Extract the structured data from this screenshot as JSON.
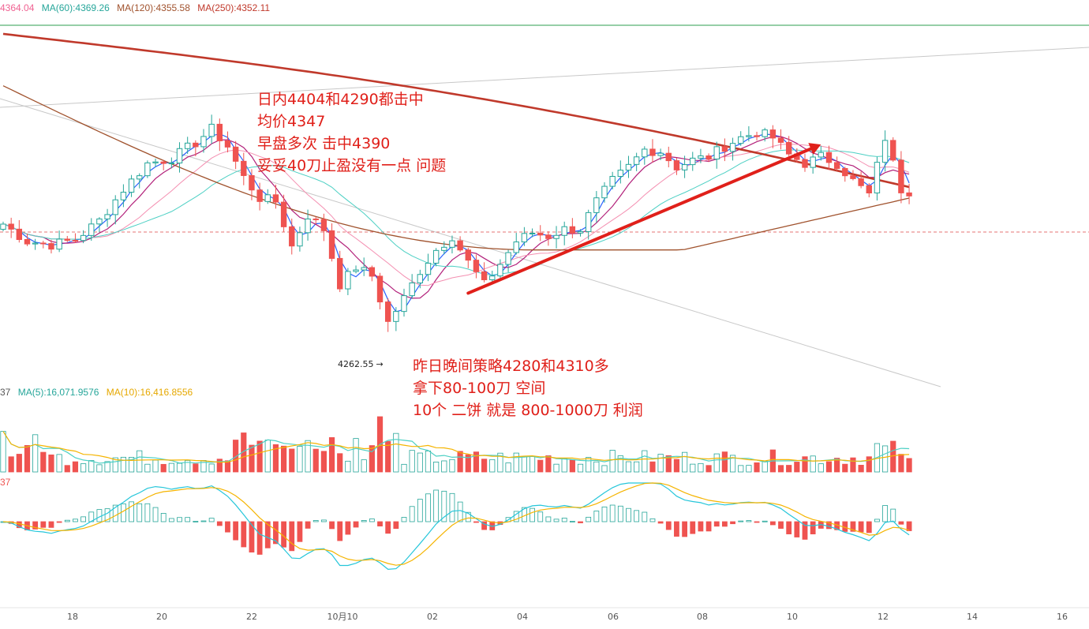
{
  "colors": {
    "up": "#26a69a",
    "down": "#ef5350",
    "ma5": "#2962ff",
    "ma10": "#b2207a",
    "ma30": "#f48fb1",
    "ma60": "#4dd0c4",
    "ma120": "#a0522d",
    "ma250": "#c0392b",
    "vol_ma5": "#4dd0c4",
    "vol_ma10": "#f5b400",
    "annotation": "#e0201a",
    "trendline": "#c8c8c8",
    "hline_top": "#2e9e4f",
    "price_dash": "#e57373"
  },
  "price_header": {
    "ma30": "4364.04",
    "ma60": "MA(60):4369.26",
    "ma120": "MA(120):4355.58",
    "ma250": "MA(250):4352.11"
  },
  "volume_header": {
    "prefix": "37",
    "ma5": "MA(5):16,071.9576",
    "ma10": "MA(10):16,416.8556"
  },
  "macd_header": {
    "prefix": "37"
  },
  "low_label": "4262.55",
  "low_arrow": "→",
  "annotations": {
    "top": [
      "日内4404和4290都击中",
      "均价4347",
      "早盘多次 击中4390",
      "妥妥40刀止盈没有一点 问题"
    ],
    "bottom": [
      "昨日晚间策略4280和4310多",
      "拿下80-100刀 空间",
      "10个 二饼 就是 800-1000刀 利润"
    ]
  },
  "chart_data": {
    "type": "candlestick",
    "x_tick_labels": [
      "18",
      "20",
      "22",
      "10月10",
      "02",
      "04",
      "06",
      "08",
      "10",
      "12",
      "14",
      "16"
    ],
    "price_low_marked": 4262.55,
    "price_keypoints": [
      {
        "t": 0,
        "p": 4325
      },
      {
        "t": 3,
        "p": 4315
      },
      {
        "t": 6,
        "p": 4313
      },
      {
        "t": 9,
        "p": 4316
      },
      {
        "t": 12,
        "p": 4327
      },
      {
        "t": 15,
        "p": 4345
      },
      {
        "t": 18,
        "p": 4360
      },
      {
        "t": 21,
        "p": 4363
      },
      {
        "t": 24,
        "p": 4372
      },
      {
        "t": 26,
        "p": 4380
      },
      {
        "t": 28,
        "p": 4370
      },
      {
        "t": 30,
        "p": 4352
      },
      {
        "t": 32,
        "p": 4340
      },
      {
        "t": 34,
        "p": 4338
      },
      {
        "t": 36,
        "p": 4312
      },
      {
        "t": 38,
        "p": 4330
      },
      {
        "t": 40,
        "p": 4322
      },
      {
        "t": 42,
        "p": 4290
      },
      {
        "t": 44,
        "p": 4300
      },
      {
        "t": 46,
        "p": 4295
      },
      {
        "t": 48,
        "p": 4268
      },
      {
        "t": 50,
        "p": 4282
      },
      {
        "t": 52,
        "p": 4298
      },
      {
        "t": 54,
        "p": 4310
      },
      {
        "t": 56,
        "p": 4318
      },
      {
        "t": 58,
        "p": 4303
      },
      {
        "t": 60,
        "p": 4290
      },
      {
        "t": 62,
        "p": 4302
      },
      {
        "t": 64,
        "p": 4315
      },
      {
        "t": 66,
        "p": 4320
      },
      {
        "t": 68,
        "p": 4318
      },
      {
        "t": 70,
        "p": 4322
      },
      {
        "t": 72,
        "p": 4322
      },
      {
        "t": 74,
        "p": 4338
      },
      {
        "t": 76,
        "p": 4350
      },
      {
        "t": 78,
        "p": 4358
      },
      {
        "t": 80,
        "p": 4368
      },
      {
        "t": 82,
        "p": 4367
      },
      {
        "t": 84,
        "p": 4358
      },
      {
        "t": 86,
        "p": 4362
      },
      {
        "t": 88,
        "p": 4364
      },
      {
        "t": 90,
        "p": 4370
      },
      {
        "t": 92,
        "p": 4375
      },
      {
        "t": 94,
        "p": 4378
      },
      {
        "t": 96,
        "p": 4375
      },
      {
        "t": 98,
        "p": 4365
      },
      {
        "t": 100,
        "p": 4360
      },
      {
        "t": 102,
        "p": 4364
      },
      {
        "t": 104,
        "p": 4360
      },
      {
        "t": 106,
        "p": 4350
      },
      {
        "t": 108,
        "p": 4342
      },
      {
        "t": 110,
        "p": 4375
      },
      {
        "t": 112,
        "p": 4345
      },
      {
        "t": 113,
        "p": 4344
      }
    ],
    "price_ylim": [
      4240,
      4440
    ],
    "reference_price": 4350,
    "trendline_arrow": {
      "from": {
        "t": 58,
        "p": 4285
      },
      "to": {
        "t": 102,
        "p": 4371
      }
    },
    "volume_series": [
      "Volume",
      "MA(5)",
      "MA(10)"
    ],
    "macd_series": [
      "MACD histogram",
      "DIF",
      "DEA"
    ],
    "n_bars": 114
  }
}
